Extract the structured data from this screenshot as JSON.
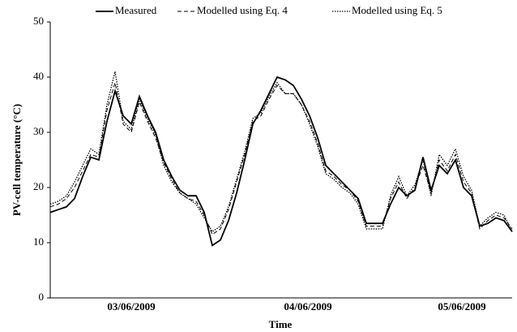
{
  "chart_data": {
    "type": "line",
    "xlabel": "Time",
    "ylabel": "PV-cell temperature (°C)",
    "x": [
      0,
      1,
      2,
      3,
      4,
      5,
      6,
      7,
      8,
      9,
      10,
      11,
      12,
      13,
      14,
      15,
      16,
      17,
      18,
      19,
      20,
      21,
      22,
      23,
      24,
      25,
      26,
      27,
      28,
      29,
      30,
      31,
      32,
      33,
      34,
      35,
      36,
      37,
      38,
      39,
      40,
      41,
      42,
      43,
      44,
      45,
      46,
      47,
      48,
      49,
      50,
      51,
      52,
      53,
      54,
      55,
      56,
      57
    ],
    "xlim": [
      0,
      57
    ],
    "xticks": [
      {
        "value": 10,
        "label": "03/06/2009"
      },
      {
        "value": 31.8,
        "label": "04/06/2009"
      },
      {
        "value": 50.8,
        "label": "05/06/2009"
      }
    ],
    "ylim": [
      0,
      50
    ],
    "yticks": [
      0,
      10,
      20,
      30,
      40,
      50
    ],
    "grid": false,
    "legend": "top",
    "series": [
      {
        "name": "Measured",
        "color": "#000000",
        "dash": "solid",
        "values": [
          15.5,
          16,
          16.5,
          18,
          22,
          25.5,
          25,
          32,
          37.5,
          33,
          31.5,
          36.5,
          33,
          30,
          25,
          22,
          19.5,
          18.5,
          18.5,
          15.5,
          9.5,
          10.5,
          14,
          19,
          25,
          31.5,
          34,
          37,
          40,
          39.5,
          38.5,
          36,
          33,
          29,
          24,
          22.5,
          21,
          19.5,
          18,
          13.5,
          13.5,
          13.5,
          17,
          20,
          18.5,
          19.5,
          25.5,
          19.5,
          24,
          22.5,
          25,
          20,
          18.5,
          13,
          13.5,
          14.5,
          14,
          12
        ]
      },
      {
        "name": "Modelled using Eq. 4",
        "color": "#000000",
        "dash": "dashed",
        "values": [
          16.5,
          17,
          18,
          20,
          23,
          26,
          25.5,
          34,
          39,
          31.5,
          30,
          35.5,
          32,
          29,
          24.5,
          21.5,
          19,
          18,
          17.5,
          15,
          11.5,
          12.5,
          16,
          21,
          26,
          32,
          33,
          36,
          38.5,
          37,
          37,
          35,
          32,
          28,
          23,
          22,
          20.5,
          19.5,
          17.5,
          13,
          13,
          13,
          18,
          21,
          18,
          20,
          24,
          19,
          25,
          23,
          26,
          21,
          19,
          12.5,
          14,
          15,
          14.5,
          12.5
        ]
      },
      {
        "name": "Modelled using Eq. 5",
        "color": "#000000",
        "dash": "dotted",
        "values": [
          17,
          17.5,
          18.5,
          21,
          24,
          27,
          26,
          35,
          41,
          32,
          30.5,
          36,
          32.5,
          29.5,
          24,
          21,
          19,
          18,
          17,
          14.5,
          12,
          13,
          16.5,
          21.5,
          26.5,
          32.5,
          33.5,
          36.5,
          39,
          37,
          37,
          35,
          31.5,
          27.5,
          22.5,
          21.5,
          20,
          19,
          17,
          12.5,
          12.5,
          12.5,
          18.5,
          22,
          18.5,
          20.5,
          25,
          18.5,
          26,
          24,
          27,
          22,
          19.5,
          13,
          14.5,
          15.5,
          15,
          12
        ]
      }
    ]
  }
}
